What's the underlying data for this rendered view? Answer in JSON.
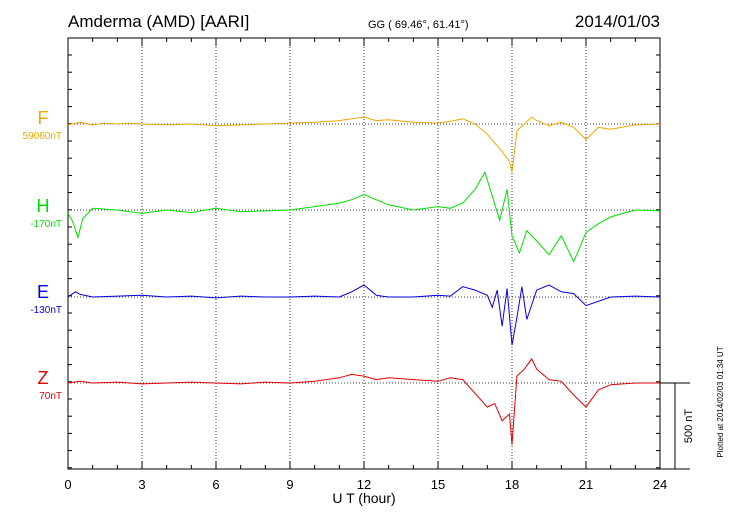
{
  "header": {
    "station": "Amderma (AMD)  [AARI]",
    "coords": "GG ( 69.46°,  61.41°)",
    "date": "2014/01/03"
  },
  "footer": {
    "plotted": "Plotted at 2014/02/03 01:34 UT"
  },
  "chart_data": {
    "type": "line",
    "title": "Amderma (AMD)  [AARI]",
    "xlabel": "U T (hour)",
    "ylabel": "",
    "xlim": [
      0,
      24
    ],
    "xticks": [
      0,
      3,
      6,
      9,
      12,
      15,
      18,
      21,
      24
    ],
    "xtick_labels": [
      "0",
      "3",
      "6",
      "9",
      "12",
      "15",
      "18",
      "21",
      "24"
    ],
    "grid": true,
    "scale_bar": {
      "label": "500 nT",
      "value_nT": 500
    },
    "series": [
      {
        "name": "F",
        "baseline_label": "59060nT",
        "baseline_nT": 59060,
        "color": "#f0a800",
        "x": [
          0,
          0.5,
          1,
          1.5,
          2,
          2.5,
          3,
          4,
          5,
          6,
          7,
          8,
          9,
          10,
          11,
          11.5,
          12,
          12.5,
          13,
          14,
          15,
          15.5,
          16,
          16.5,
          17,
          17.3,
          17.6,
          17.9,
          18,
          18.2,
          18.5,
          18.8,
          19,
          19.5,
          20,
          20.5,
          21,
          21.5,
          22,
          23,
          24
        ],
        "values": [
          -5,
          10,
          -5,
          5,
          0,
          5,
          0,
          -5,
          0,
          -10,
          -5,
          0,
          5,
          10,
          20,
          30,
          40,
          20,
          25,
          10,
          5,
          15,
          30,
          0,
          -60,
          -110,
          -160,
          -220,
          -280,
          -40,
          0,
          40,
          20,
          -10,
          10,
          -20,
          -90,
          -20,
          -30,
          -5,
          0
        ]
      },
      {
        "name": "H",
        "baseline_label": "-170nT",
        "baseline_nT": -170,
        "color": "#00e000",
        "x": [
          0,
          0.2,
          0.4,
          0.6,
          1,
          2,
          3,
          4,
          5,
          6,
          7,
          8,
          9,
          10,
          11,
          11.5,
          12,
          12.5,
          13,
          14,
          15,
          15.5,
          16,
          16.5,
          16.9,
          17.2,
          17.5,
          17.8,
          18,
          18.3,
          18.6,
          19,
          19.5,
          20,
          20.5,
          20.8,
          21,
          21.5,
          22,
          23,
          24
        ],
        "values": [
          -20,
          -70,
          -160,
          -50,
          10,
          0,
          -20,
          0,
          -15,
          10,
          -10,
          -5,
          0,
          20,
          40,
          60,
          90,
          60,
          30,
          0,
          20,
          10,
          40,
          120,
          220,
          80,
          -60,
          120,
          -150,
          -250,
          -120,
          -180,
          -260,
          -150,
          -300,
          -200,
          -130,
          -80,
          -40,
          0,
          -5
        ]
      },
      {
        "name": "E",
        "baseline_label": "-130nT",
        "baseline_nT": -130,
        "color": "#0000e0",
        "x": [
          0,
          0.3,
          0.5,
          1,
          2,
          3,
          4,
          5,
          6,
          7,
          8,
          9,
          10,
          11,
          11.5,
          12,
          12.5,
          13,
          14,
          15,
          15.5,
          16,
          16.5,
          17,
          17.2,
          17.4,
          17.6,
          17.8,
          18,
          18.2,
          18.4,
          18.6,
          19,
          19.5,
          20,
          20.5,
          21,
          22,
          23,
          24
        ],
        "values": [
          0,
          30,
          15,
          0,
          5,
          10,
          0,
          5,
          -5,
          5,
          0,
          0,
          5,
          0,
          30,
          70,
          10,
          0,
          0,
          10,
          5,
          60,
          40,
          10,
          -60,
          40,
          -170,
          50,
          -280,
          -120,
          60,
          -130,
          40,
          70,
          30,
          20,
          -50,
          0,
          5,
          0
        ]
      },
      {
        "name": "Z",
        "baseline_label": "70nT",
        "baseline_nT": 70,
        "color": "#e00000",
        "x": [
          0,
          0.5,
          1,
          2,
          3,
          4,
          5,
          6,
          7,
          8,
          9,
          10,
          11,
          11.5,
          12,
          12.5,
          13,
          14,
          15,
          15.5,
          16,
          16.5,
          17,
          17.3,
          17.6,
          17.9,
          18,
          18.2,
          18.5,
          18.8,
          19,
          19.5,
          20,
          20.5,
          21,
          21.5,
          22,
          23,
          24
        ],
        "values": [
          0,
          10,
          0,
          5,
          -5,
          0,
          5,
          0,
          -5,
          5,
          0,
          10,
          30,
          50,
          40,
          20,
          30,
          20,
          10,
          30,
          20,
          -60,
          -140,
          -120,
          -220,
          -180,
          -360,
          40,
          80,
          140,
          80,
          20,
          10,
          -70,
          -140,
          -40,
          -10,
          0,
          0
        ]
      }
    ]
  }
}
